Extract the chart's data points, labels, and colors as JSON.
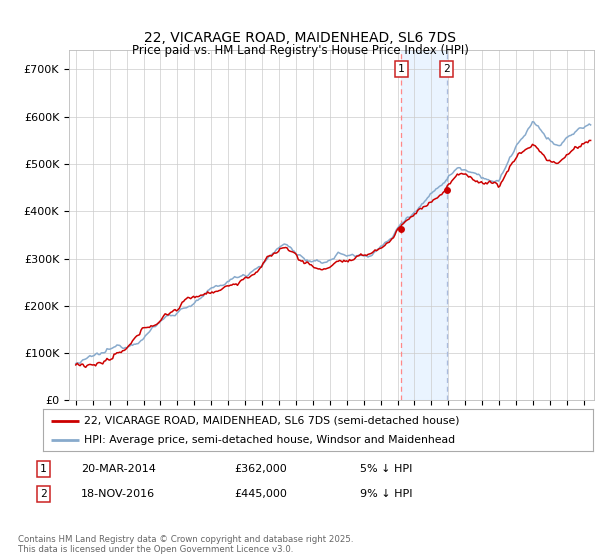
{
  "title": "22, VICARAGE ROAD, MAIDENHEAD, SL6 7DS",
  "subtitle": "Price paid vs. HM Land Registry's House Price Index (HPI)",
  "ylabel_ticks": [
    "£0",
    "£100K",
    "£200K",
    "£300K",
    "£400K",
    "£500K",
    "£600K",
    "£700K"
  ],
  "ytick_values": [
    0,
    100000,
    200000,
    300000,
    400000,
    500000,
    600000,
    700000
  ],
  "ylim": [
    0,
    740000
  ],
  "xlim_start": 1994.6,
  "xlim_end": 2025.6,
  "transaction1_date": 2014.22,
  "transaction1_price": 362000,
  "transaction1_label": "1",
  "transaction2_date": 2016.9,
  "transaction2_price": 445000,
  "transaction2_label": "2",
  "legend_line1": "22, VICARAGE ROAD, MAIDENHEAD, SL6 7DS (semi-detached house)",
  "legend_line2": "HPI: Average price, semi-detached house, Windsor and Maidenhead",
  "footnote": "Contains HM Land Registry data © Crown copyright and database right 2025.\nThis data is licensed under the Open Government Licence v3.0.",
  "price_color": "#cc0000",
  "hpi_color": "#88aacc",
  "bg_color": "#ffffff",
  "grid_color": "#cccccc",
  "shading_color": "#ddeeff",
  "vline1_color": "#ff8888",
  "vline2_color": "#aabbdd"
}
